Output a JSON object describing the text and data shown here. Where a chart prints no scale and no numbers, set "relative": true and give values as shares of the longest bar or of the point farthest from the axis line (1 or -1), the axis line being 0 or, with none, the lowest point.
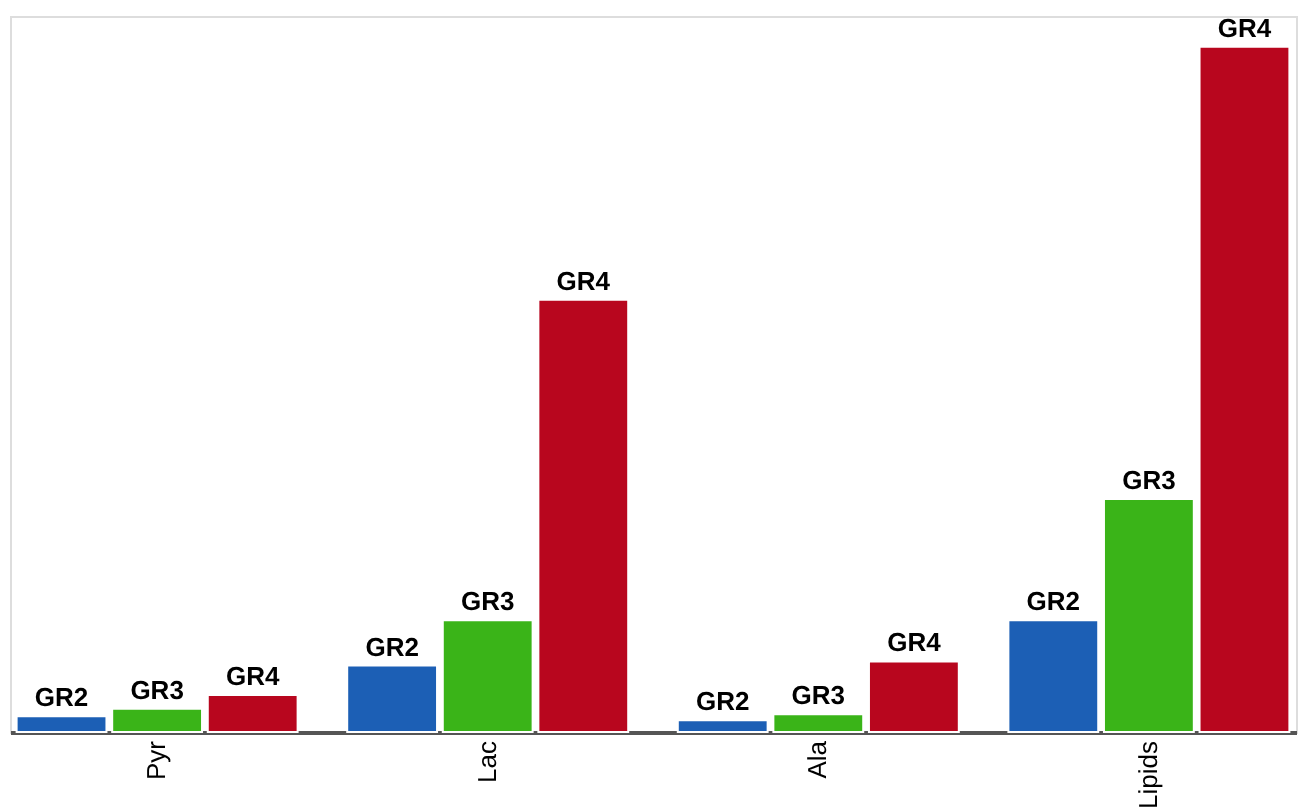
{
  "chart_data": {
    "type": "bar",
    "relative": true,
    "categories": [
      "Pyr",
      "Lac",
      "Ala",
      "Lipids"
    ],
    "series": [
      {
        "name": "GR2",
        "color": "#1c5fb5",
        "values": [
          0.023,
          0.097,
          0.017,
          0.163
        ]
      },
      {
        "name": "GR3",
        "color": "#3ab418",
        "values": [
          0.034,
          0.163,
          0.026,
          0.34
        ]
      },
      {
        "name": "GR4",
        "color": "#b8061e",
        "values": [
          0.054,
          0.631,
          0.103,
          1.0
        ]
      }
    ]
  }
}
